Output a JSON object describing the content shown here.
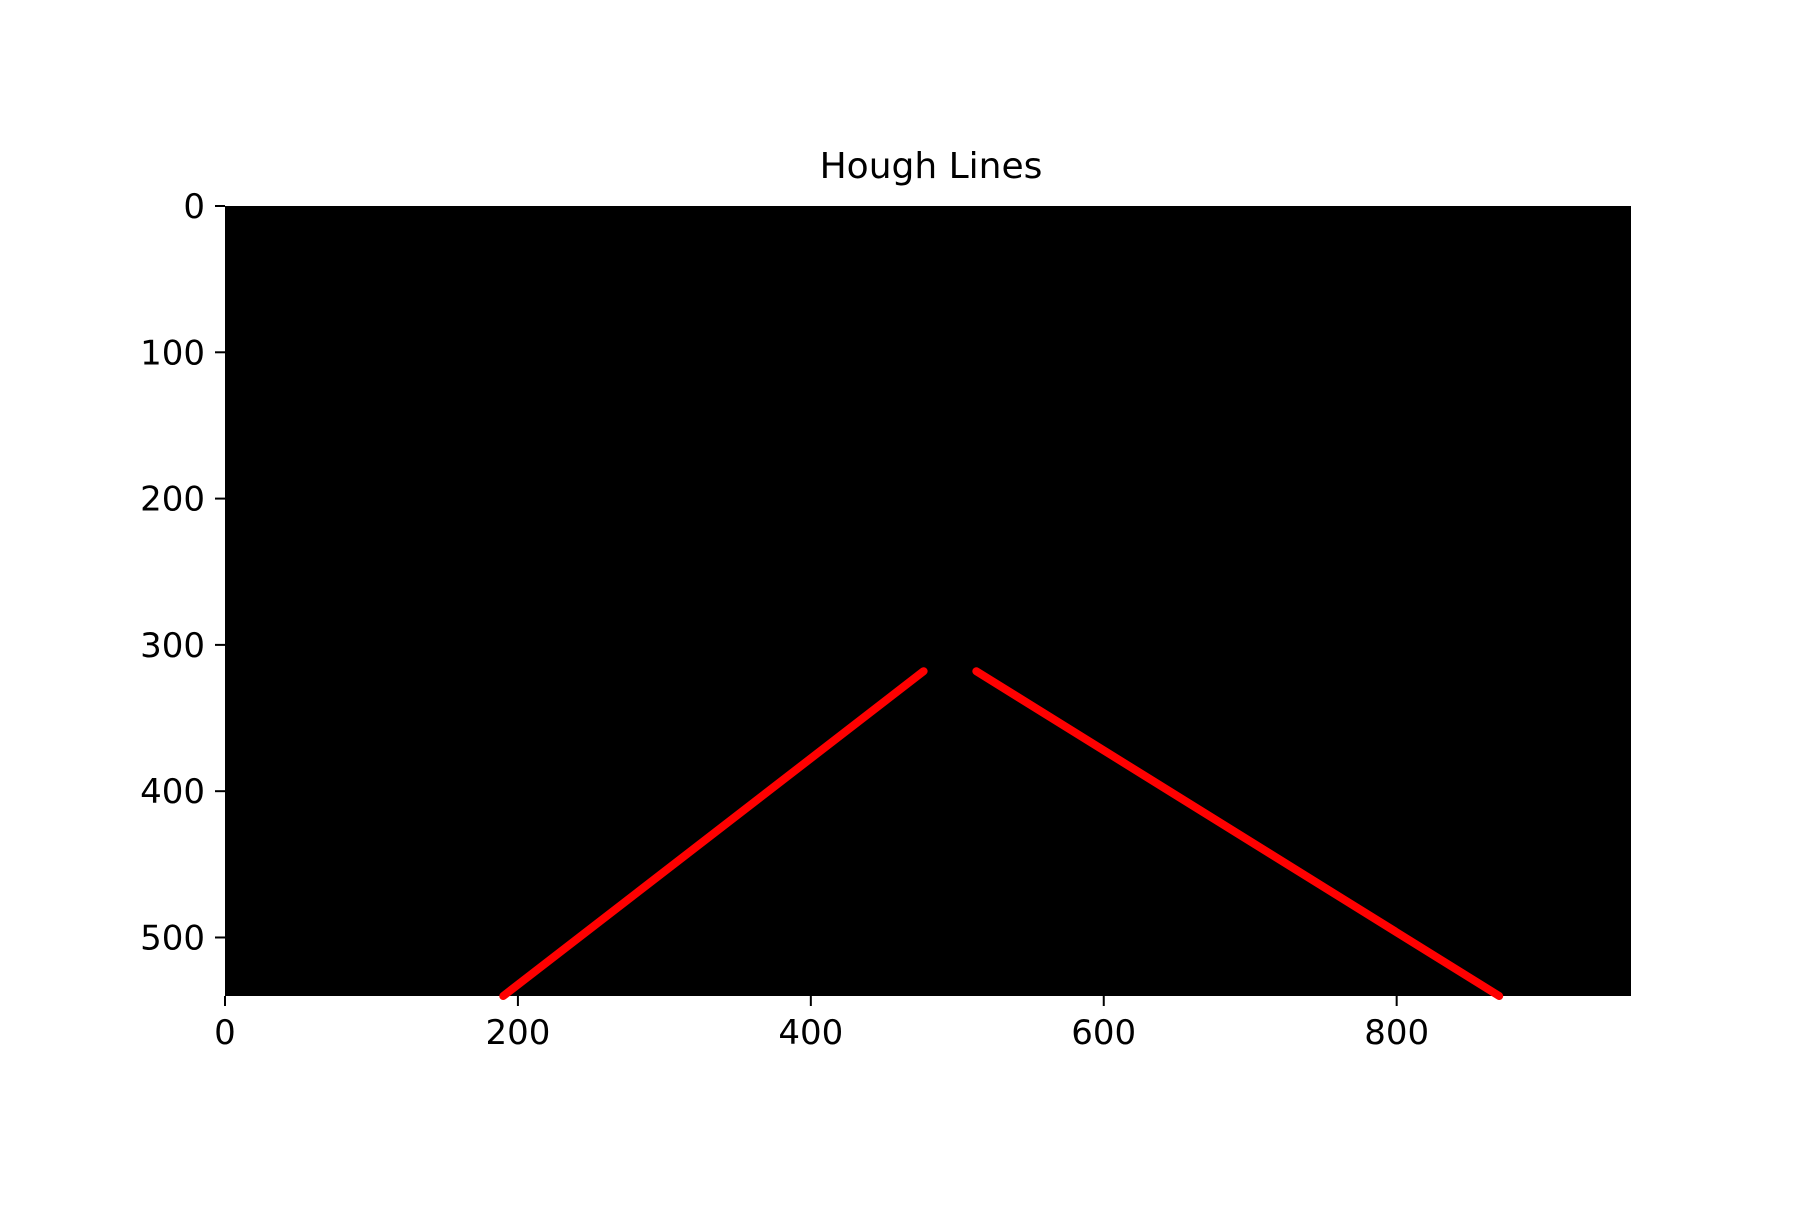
{
  "chart_data": {
    "type": "line",
    "title": "Hough Lines",
    "xlabel": "",
    "ylabel": "",
    "xlim": [
      0,
      960
    ],
    "ylim": [
      540,
      0
    ],
    "y_inverted": true,
    "x_ticks": [
      0,
      200,
      400,
      600,
      800
    ],
    "y_ticks": [
      0,
      100,
      200,
      300,
      400,
      500
    ],
    "grid": false,
    "background": "#000000",
    "line_color": "#ff0000",
    "segments": [
      {
        "x": [
          190,
          477
        ],
        "y": [
          540,
          318
        ]
      },
      {
        "x": [
          513,
          870
        ],
        "y": [
          318,
          540
        ]
      }
    ]
  }
}
